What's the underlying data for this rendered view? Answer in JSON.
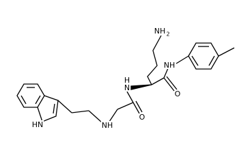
{
  "molecule": {
    "atoms": [
      {
        "label": "NH",
        "subscript": "2"
      },
      {
        "label": "NH"
      },
      {
        "label": "O"
      },
      {
        "h": "H",
        "label": "N"
      },
      {
        "label": "O"
      },
      {
        "label": "NH"
      },
      {
        "label": "HN"
      }
    ]
  }
}
